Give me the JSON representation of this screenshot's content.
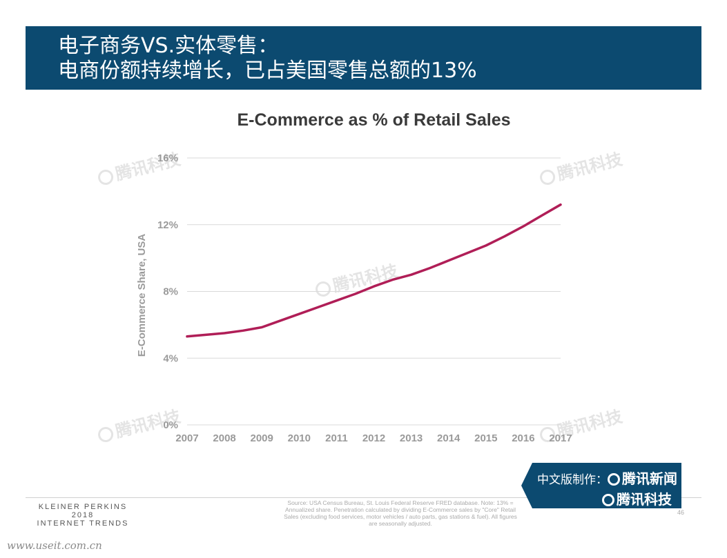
{
  "header": {
    "line1": "电子商务VS.实体零售：",
    "line2": "电商份额持续增长，已占美国零售总额的13%"
  },
  "watermark": {
    "text": "腾讯科技"
  },
  "chart_data": {
    "type": "line",
    "title": "E-Commerce as % of Retail Sales",
    "xlabel": "",
    "ylabel": "E-Commerce Share, USA",
    "ylim": [
      0,
      16
    ],
    "yticks": [
      0,
      4,
      8,
      12,
      16
    ],
    "ytick_labels": [
      "0%",
      "4%",
      "8%",
      "12%",
      "16%"
    ],
    "xlim": [
      2007,
      2017
    ],
    "xticks": [
      2007,
      2008,
      2009,
      2010,
      2011,
      2012,
      2013,
      2014,
      2015,
      2016,
      2017
    ],
    "xtick_labels": [
      "2007",
      "2008",
      "2009",
      "2010",
      "2011",
      "2012",
      "2013",
      "2014",
      "2015",
      "2016",
      "2017"
    ],
    "grid": true,
    "legend": "none",
    "series": [
      {
        "color": "#b01e57",
        "x": [
          2007,
          2007.5,
          2008,
          2008.5,
          2009,
          2009.5,
          2010,
          2010.5,
          2011,
          2011.5,
          2012,
          2012.5,
          2013,
          2013.5,
          2014,
          2014.5,
          2015,
          2015.5,
          2016,
          2016.5,
          2017
        ],
        "y": [
          5.3,
          5.4,
          5.5,
          5.65,
          5.85,
          6.25,
          6.65,
          7.05,
          7.45,
          7.85,
          8.3,
          8.7,
          9.0,
          9.4,
          9.85,
          10.3,
          10.75,
          11.3,
          11.9,
          12.55,
          13.2
        ]
      }
    ]
  },
  "footer": {
    "brand_line1": "KLEINER PERKINS",
    "brand_line2": "2018",
    "brand_line3": "INTERNET TRENDS",
    "source_note": "Source: USA Census Bureau, St. Louis Federal Reserve FRED database. Note: 13% = Annualized share. Penetration calculated by dividing E-Commerce sales by \"Core\" Retail Sales (excluding food services, motor vehicles / auto parts, gas stations & fuel). All figures are seasonally adjusted.",
    "page_number": "46"
  },
  "credits": {
    "line1_prefix": "中文版制作：",
    "line1_name": "腾讯新闻",
    "line2_name": "腾讯科技"
  },
  "site_watermark": "www.useit.com.cn"
}
